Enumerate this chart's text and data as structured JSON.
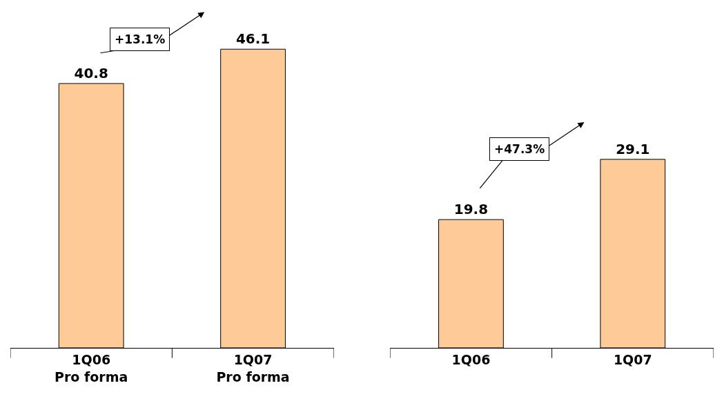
{
  "chart_data": [
    {
      "type": "bar",
      "categories": [
        "1Q06\nPro forma",
        "1Q07\nPro forma"
      ],
      "values": [
        40.8,
        46.1
      ],
      "color": "#fdca98",
      "data_labels": true,
      "annotations": [
        "+13.1%"
      ],
      "tick_labels": "x"
    },
    {
      "type": "bar",
      "categories": [
        "1Q06",
        "1Q07"
      ],
      "values": [
        19.8,
        29.1
      ],
      "color": "#fdca98",
      "data_labels": true,
      "annotations": [
        "+47.3%"
      ],
      "tick_labels": "x"
    }
  ]
}
